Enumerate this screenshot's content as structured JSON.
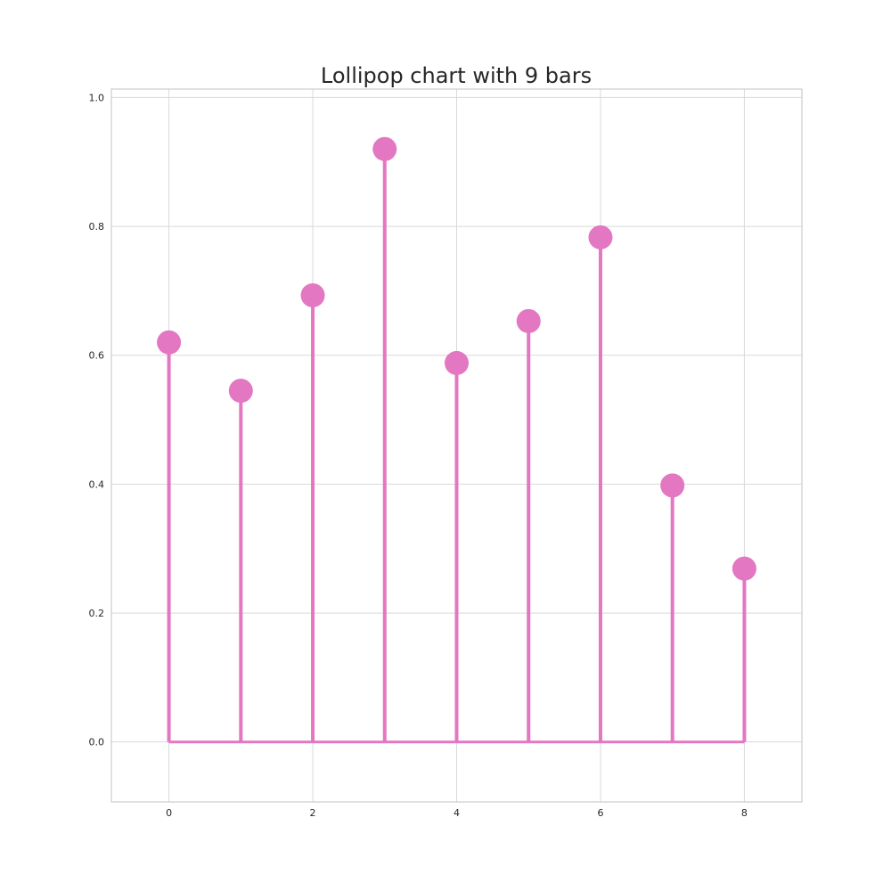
{
  "chart_data": {
    "type": "lollipop",
    "title": "Lollipop chart with 9 bars",
    "xlabel": "",
    "ylabel": "",
    "x": [
      0,
      1,
      2,
      3,
      4,
      5,
      6,
      7,
      8
    ],
    "values": [
      0.62,
      0.545,
      0.693,
      0.92,
      0.588,
      0.653,
      0.783,
      0.398,
      0.269
    ],
    "xlim": [
      -0.8,
      8.8
    ],
    "ylim": [
      -0.093,
      1.013
    ],
    "xticks": [
      "0",
      "2",
      "4",
      "6",
      "8"
    ],
    "yticks": [
      "0.0",
      "0.2",
      "0.4",
      "0.6",
      "0.8",
      "1.0"
    ],
    "grid": true,
    "legend": "none",
    "color": "#e377c2"
  }
}
